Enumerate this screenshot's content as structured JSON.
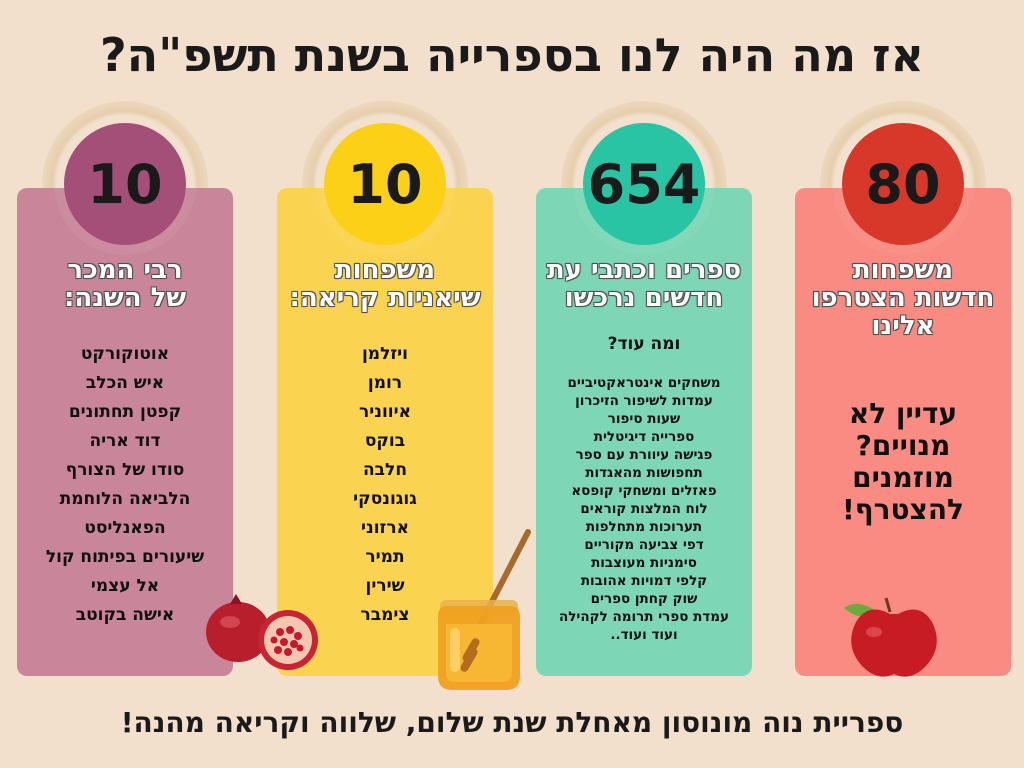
{
  "title": "אז מה היה לנו בספרייה בשנת תשפ\"ה?",
  "columns": [
    {
      "number": "80",
      "heading_lines": [
        "משפחות",
        "חדשות הצטרפו",
        "אלינו"
      ],
      "body_lines": [
        "עדיין לא",
        "מנויים?",
        "מוזמנים",
        "להצטרף!"
      ],
      "colors": {
        "card": "#f98b82",
        "circle": "#d8382a"
      }
    },
    {
      "number": "654",
      "heading_lines": [
        "ספרים וכתבי עת",
        "חדשים נרכשו"
      ],
      "subheading": "ומה עוד?",
      "items": [
        "משחקים אינטראקטיביים",
        "עמדות לשיפור הזיכרון",
        "שעות סיפור",
        "ספרייה דיגיטלית",
        "פגישה עיוורת עם ספר",
        "תחפושות מהאגדות",
        "פאזלים ומשחקי קופסא",
        "לוח המלצות קוראים",
        "תערוכות מתחלפות",
        "דפי צביעה מקוריים",
        "סימניות מעוצבות",
        "קלפי דמויות אהובות",
        "שוק קחתן ספרים",
        "עמדת ספרי תרומה לקהילה",
        "ועוד ועוד.."
      ],
      "colors": {
        "card": "#7dd6b6",
        "circle": "#28c4a4"
      }
    },
    {
      "number": "10",
      "heading_lines": [
        "משפחות",
        "שיאניות קריאה:"
      ],
      "items": [
        "ויזלמן",
        "רומן",
        "איווניר",
        "בוקס",
        "חלבה",
        "גוגונסקי",
        "ארזוני",
        "תמיר",
        "שירין",
        "צימבר"
      ],
      "colors": {
        "card": "#fad350",
        "circle": "#fcd016"
      }
    },
    {
      "number": "10",
      "heading_lines": [
        "רבי המכר",
        "של השנה:"
      ],
      "items": [
        "אוטוקורקט",
        "איש הכלב",
        "קפטן תחתונים",
        "דוד אריה",
        "סודו של הצורף",
        "הלביאה הלוחמת",
        "הפאנליסט",
        "שיעורים בפיתוח קול",
        "אל עצמי",
        "אישה בקוטב"
      ],
      "colors": {
        "card": "#c9869a",
        "circle": "#a44f78"
      }
    }
  ],
  "footer": "ספריית נוה מונוסון מאחלת שנת שלום, שלווה וקריאה מהנה!",
  "colors": {
    "background": "#f2e0cc",
    "text": "#1a1a1a"
  },
  "decorations": [
    "pomegranate-icon",
    "honey-jar-icon",
    "apple-icon"
  ]
}
